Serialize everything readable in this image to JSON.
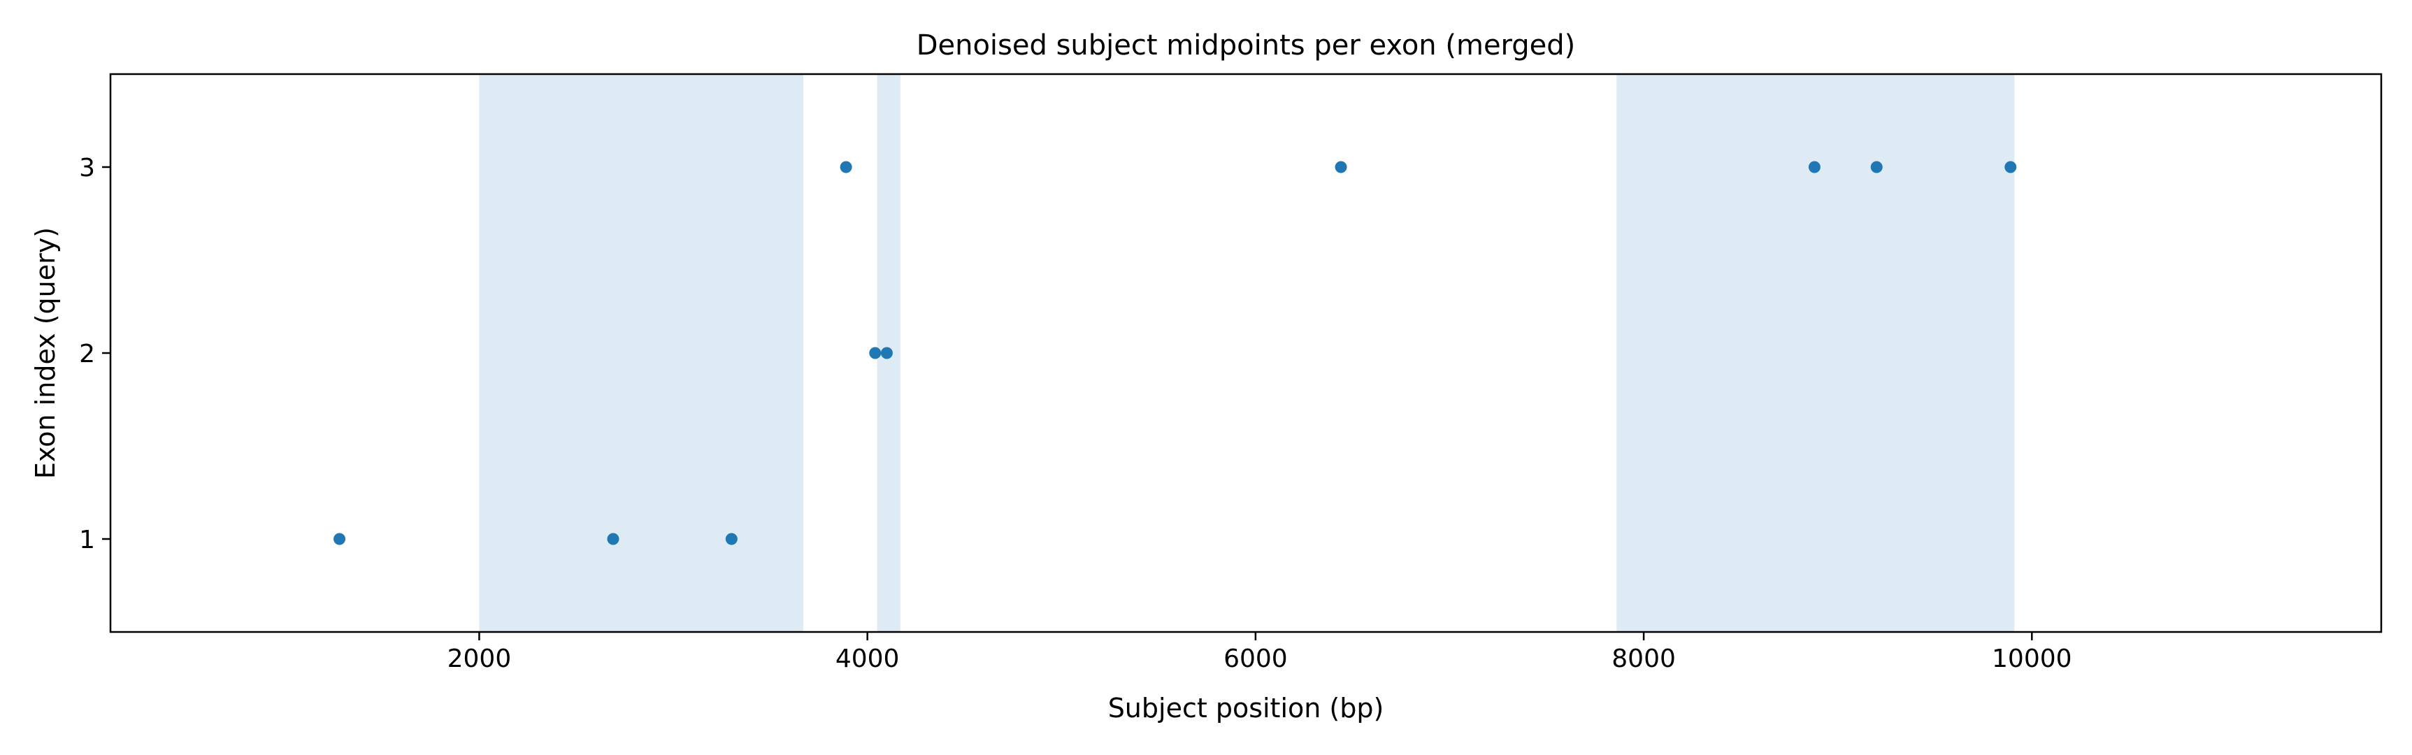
{
  "chart_data": {
    "type": "scatter",
    "title": "Denoised subject midpoints per exon (merged)",
    "xlabel": "Subject position (bp)",
    "ylabel": "Exon index (query)",
    "xlim": [
      100,
      11800
    ],
    "ylim": [
      0.5,
      3.5
    ],
    "xticks": [
      2000,
      4000,
      6000,
      8000,
      10000
    ],
    "yticks": [
      1,
      2,
      3
    ],
    "grid": false,
    "legend": "none",
    "point_color": "#1f77b4",
    "band_color": "#deebf5",
    "shaded_regions": [
      {
        "x0": 2000,
        "x1": 3670
      },
      {
        "x0": 4050,
        "x1": 4170
      },
      {
        "x0": 7860,
        "x1": 9910
      }
    ],
    "series": [
      {
        "points": [
          {
            "x": 1280,
            "y": 1
          },
          {
            "x": 2690,
            "y": 1
          },
          {
            "x": 3300,
            "y": 1
          },
          {
            "x": 4040,
            "y": 2
          },
          {
            "x": 4100,
            "y": 2
          },
          {
            "x": 3890,
            "y": 3
          },
          {
            "x": 6440,
            "y": 3
          },
          {
            "x": 8880,
            "y": 3
          },
          {
            "x": 9200,
            "y": 3
          },
          {
            "x": 9890,
            "y": 3
          }
        ]
      }
    ]
  }
}
